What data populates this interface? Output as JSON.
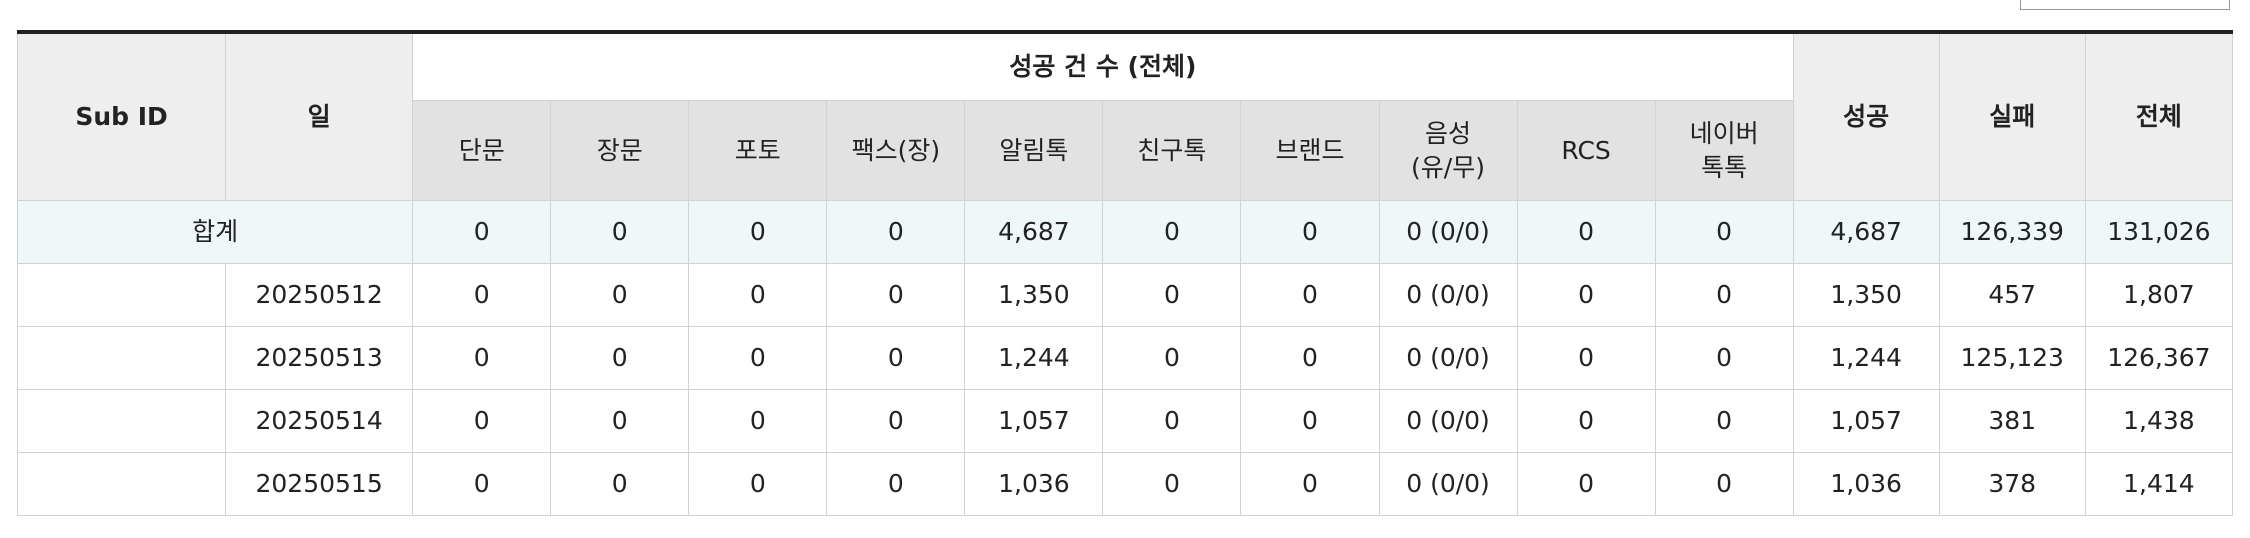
{
  "headers": {
    "sub_id": "Sub ID",
    "day": "일",
    "group": "성공 건 수 (전체)",
    "sub": [
      {
        "line1": "단문",
        "line2": ""
      },
      {
        "line1": "장문",
        "line2": ""
      },
      {
        "line1": "포토",
        "line2": ""
      },
      {
        "line1": "팩스(장)",
        "line2": ""
      },
      {
        "line1": "알림톡",
        "line2": ""
      },
      {
        "line1": "친구톡",
        "line2": ""
      },
      {
        "line1": "브랜드",
        "line2": ""
      },
      {
        "line1": "음성",
        "line2": "(유/무)"
      },
      {
        "line1": "RCS",
        "line2": ""
      },
      {
        "line1": "네이버",
        "line2": "톡톡"
      }
    ],
    "success": "성공",
    "fail": "실패",
    "total": "전체"
  },
  "total_row": {
    "label": "합계",
    "cells": [
      "0",
      "0",
      "0",
      "0",
      "4,687",
      "0",
      "0",
      "0 (0/0)",
      "0",
      "0"
    ],
    "success": "4,687",
    "fail": "126,339",
    "total": "131,026"
  },
  "rows": [
    {
      "sub_id": "",
      "day": "20250512",
      "cells": [
        "0",
        "0",
        "0",
        "0",
        "1,350",
        "0",
        "0",
        "0 (0/0)",
        "0",
        "0"
      ],
      "success": "1,350",
      "fail": "457",
      "total": "1,807"
    },
    {
      "sub_id": "",
      "day": "20250513",
      "cells": [
        "0",
        "0",
        "0",
        "0",
        "1,244",
        "0",
        "0",
        "0 (0/0)",
        "0",
        "0"
      ],
      "success": "1,244",
      "fail": "125,123",
      "total": "126,367"
    },
    {
      "sub_id": "",
      "day": "20250514",
      "cells": [
        "0",
        "0",
        "0",
        "0",
        "1,057",
        "0",
        "0",
        "0 (0/0)",
        "0",
        "0"
      ],
      "success": "1,057",
      "fail": "381",
      "total": "1,438"
    },
    {
      "sub_id": "",
      "day": "20250515",
      "cells": [
        "0",
        "0",
        "0",
        "0",
        "1,036",
        "0",
        "0",
        "0 (0/0)",
        "0",
        "0"
      ],
      "success": "1,036",
      "fail": "378",
      "total": "1,414"
    }
  ]
}
